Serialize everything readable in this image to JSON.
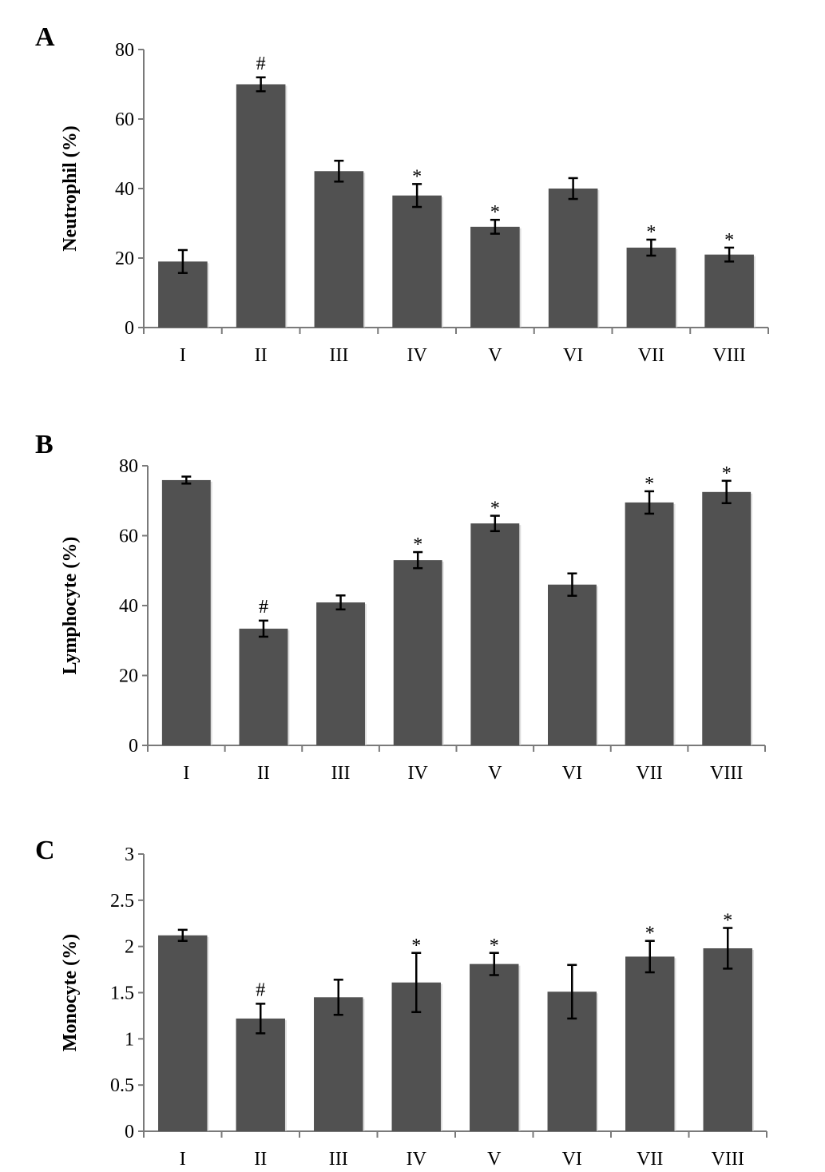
{
  "colors": {
    "bar": "#515151",
    "axis": "#7a7a7a",
    "error": "#000000"
  },
  "chart_data": [
    {
      "type": "bar",
      "panel": "A",
      "title": "",
      "xlabel": "",
      "ylabel": "Neutrophil (%)",
      "ylim": [
        0,
        80
      ],
      "yticks": [
        0,
        20,
        40,
        60,
        80
      ],
      "ytick_labels": [
        "0",
        "20",
        "40",
        "60",
        "80"
      ],
      "categories": [
        "I",
        "II",
        "III",
        "IV",
        "V",
        "VI",
        "VII",
        "VIII"
      ],
      "values": [
        19,
        70,
        45,
        38,
        29,
        40,
        23,
        21
      ],
      "errors": [
        3.3,
        2,
        3,
        3.3,
        2,
        3,
        2.3,
        2
      ],
      "annotations": [
        "",
        "#",
        "",
        "*",
        "*",
        "",
        "*",
        "*"
      ],
      "grid": false
    },
    {
      "type": "bar",
      "panel": "B",
      "title": "",
      "xlabel": "",
      "ylabel": "Lymphocyte (%)",
      "ylim": [
        0,
        80
      ],
      "yticks": [
        0,
        20,
        40,
        60,
        80
      ],
      "ytick_labels": [
        "0",
        "20",
        "40",
        "60",
        "80"
      ],
      "categories": [
        "I",
        "II",
        "III",
        "IV",
        "V",
        "VI",
        "VII",
        "VIII"
      ],
      "values": [
        75.9,
        33.4,
        40.9,
        53,
        63.5,
        46,
        69.5,
        72.5
      ],
      "errors": [
        1,
        2.3,
        2,
        2.3,
        2.2,
        3.2,
        3.2,
        3.2
      ],
      "annotations": [
        "",
        "#",
        "",
        "*",
        "*",
        "",
        "*",
        "*"
      ],
      "grid": false
    },
    {
      "type": "bar",
      "panel": "C",
      "title": "",
      "xlabel": "",
      "ylabel": "Monocyte (%)",
      "ylim": [
        0,
        3
      ],
      "yticks": [
        0,
        0.5,
        1,
        1.5,
        2,
        2.5,
        3
      ],
      "ytick_labels": [
        "0",
        "0.5",
        "1",
        "1.5",
        "2",
        "2.5",
        "3"
      ],
      "categories": [
        "I",
        "II",
        "III",
        "IV",
        "V",
        "VI",
        "VII",
        "VIII"
      ],
      "values": [
        2.12,
        1.22,
        1.45,
        1.61,
        1.81,
        1.51,
        1.89,
        1.98
      ],
      "errors": [
        0.06,
        0.16,
        0.19,
        0.32,
        0.12,
        0.29,
        0.17,
        0.22
      ],
      "annotations": [
        "",
        "#",
        "",
        "*",
        "*",
        "",
        "*",
        "*"
      ],
      "grid": false
    }
  ]
}
